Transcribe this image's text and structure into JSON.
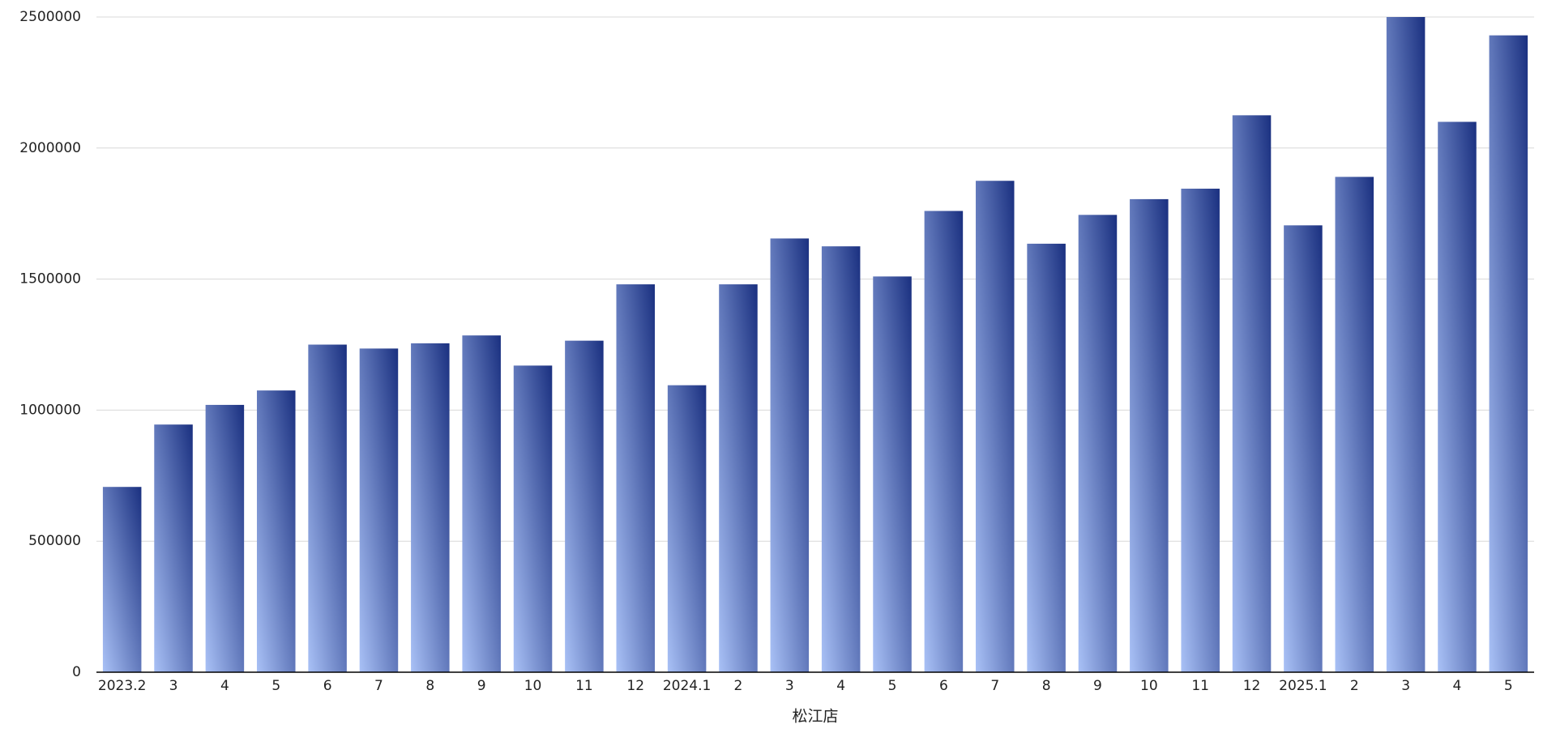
{
  "chart_data": {
    "type": "bar",
    "x_label": "松江店",
    "categories": [
      "2023.2",
      "3",
      "4",
      "5",
      "6",
      "7",
      "8",
      "9",
      "10",
      "11",
      "12",
      "2024.1",
      "2",
      "3",
      "4",
      "5",
      "6",
      "7",
      "8",
      "9",
      "10",
      "11",
      "12",
      "2025.1",
      "2",
      "3",
      "4",
      "5"
    ],
    "values": [
      707000,
      945000,
      1020000,
      1075000,
      1250000,
      1235000,
      1255000,
      1285000,
      1170000,
      1265000,
      1480000,
      1095000,
      1480000,
      1655000,
      1625000,
      1510000,
      1760000,
      1875000,
      1635000,
      1745000,
      1805000,
      1845000,
      2125000,
      1705000,
      1890000,
      2500000,
      2100000,
      2430000
    ],
    "gradient": [
      "#a9c1f6",
      "#1a3080"
    ],
    "ylim": [
      0,
      2500000
    ],
    "yticks": [
      0,
      500000,
      1000000,
      1500000,
      2000000,
      2500000
    ],
    "grid": true
  }
}
